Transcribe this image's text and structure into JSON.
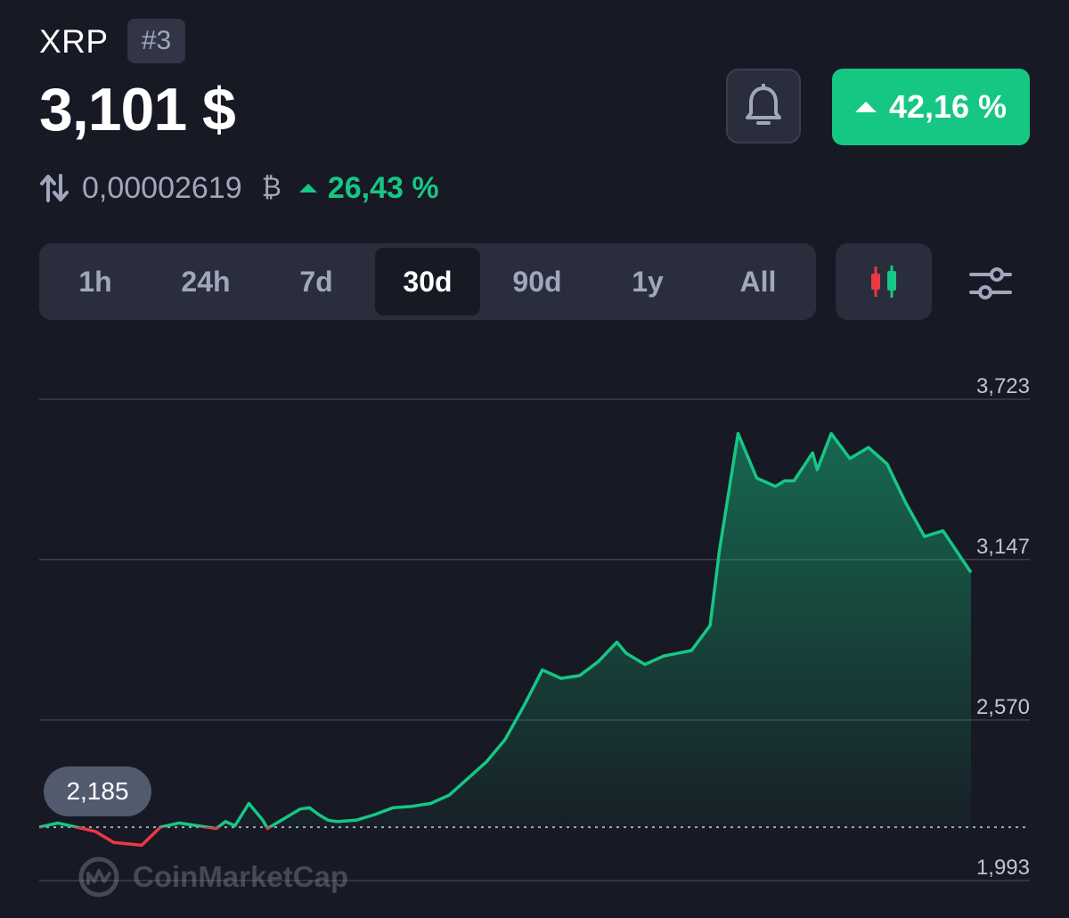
{
  "coin": {
    "symbol": "XRP",
    "rank": "#3",
    "price": "3,101 $",
    "change": "42,16 %",
    "btc_price": "0,00002619",
    "btc_symbol": "₿",
    "btc_change": "26,43 %"
  },
  "icons": {
    "bell": "bell-icon",
    "change_arrow": "triangle-up-icon",
    "swap": "swap-vertical-icon",
    "candles": "candlestick-icon",
    "settings": "sliders-icon"
  },
  "colors": {
    "background": "#171924",
    "up": "#16c784",
    "down": "#ea3943",
    "grid": "#3a3e50"
  },
  "timeframes": [
    "1h",
    "24h",
    "7d",
    "30d",
    "90d",
    "1y",
    "All"
  ],
  "active_timeframe": "30d",
  "watermark": "CoinMarketCap",
  "chart_data": {
    "type": "area",
    "ylim": [
      1.993,
      3.723
    ],
    "y_ticks": [
      "3,723",
      "3,147",
      "2,570",
      "1,993"
    ],
    "y_tick_values": [
      3.723,
      3.147,
      2.57,
      1.993
    ],
    "baseline": 2.185,
    "baseline_label": "2,185",
    "grid": true,
    "series": [
      {
        "x": [
          0,
          0.02,
          0.04,
          0.06,
          0.08,
          0.11,
          0.13,
          0.15,
          0.17,
          0.19,
          0.2,
          0.21,
          0.225,
          0.24,
          0.245,
          0.26,
          0.28,
          0.29,
          0.3,
          0.31,
          0.32,
          0.34,
          0.36,
          0.38,
          0.4,
          0.42,
          0.44,
          0.46,
          0.48,
          0.5,
          0.52,
          0.54,
          0.56,
          0.58,
          0.6,
          0.62,
          0.63,
          0.65,
          0.67,
          0.7,
          0.72,
          0.73,
          0.75,
          0.77,
          0.79,
          0.8,
          0.81,
          0.83,
          0.835,
          0.85,
          0.87,
          0.89,
          0.91,
          0.93,
          0.95,
          0.97,
          0.98,
          0.99,
          1
        ],
        "values": [
          2.185,
          2.2,
          2.185,
          2.17,
          2.13,
          2.12,
          2.185,
          2.2,
          2.19,
          2.18,
          2.205,
          2.19,
          2.27,
          2.21,
          2.18,
          2.21,
          2.25,
          2.255,
          2.23,
          2.21,
          2.205,
          2.21,
          2.23,
          2.255,
          2.26,
          2.27,
          2.3,
          2.36,
          2.42,
          2.5,
          2.62,
          2.75,
          2.72,
          2.73,
          2.78,
          2.85,
          2.81,
          2.77,
          2.8,
          2.82,
          2.91,
          3.18,
          3.6,
          3.44,
          3.41,
          3.43,
          3.43,
          3.53,
          3.47,
          3.6,
          3.51,
          3.55,
          3.49,
          3.35,
          3.23,
          3.25,
          3.2,
          3.15,
          3.101
        ]
      }
    ]
  }
}
